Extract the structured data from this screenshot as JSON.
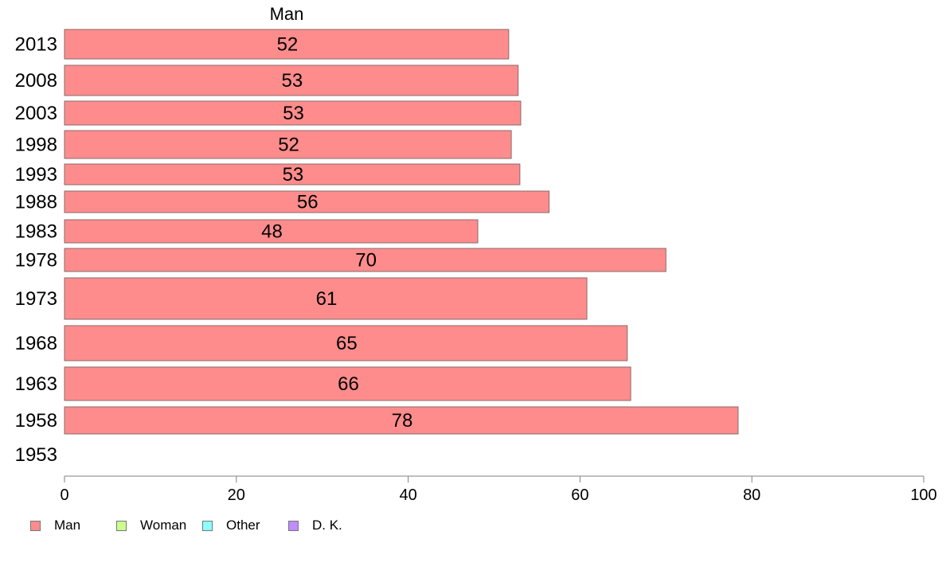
{
  "chart_data": {
    "type": "bar",
    "orientation": "horizontal",
    "panel_header": "Man",
    "categories": [
      "2013",
      "2008",
      "2003",
      "1998",
      "1993",
      "1988",
      "1983",
      "1978",
      "1973",
      "1968",
      "1963",
      "1958",
      "1953"
    ],
    "series": [
      {
        "name": "Man",
        "values": [
          52,
          53,
          53,
          52,
          53,
          56,
          48,
          70,
          61,
          65,
          66,
          78,
          null
        ]
      }
    ],
    "value_labels": [
      "52",
      "53",
      "53",
      "52",
      "53",
      "56",
      "48",
      "70",
      "61",
      "65",
      "66",
      "78",
      ""
    ],
    "bar_value_precise": [
      51.7,
      52.8,
      53.1,
      52.0,
      53.0,
      56.4,
      48.1,
      70.0,
      60.8,
      65.5,
      65.9,
      78.4,
      null
    ],
    "xlim": [
      0,
      100
    ],
    "xticks": [
      "0",
      "20",
      "40",
      "60",
      "80",
      "100"
    ],
    "xlabel": "",
    "ylabel": "",
    "legend": {
      "position": "bottom-left",
      "entries": [
        {
          "label": "Man",
          "color": "#ff8c8c"
        },
        {
          "label": "Woman",
          "color": "#ccff8c"
        },
        {
          "label": "Other",
          "color": "#8cffff"
        },
        {
          "label": "D. K.",
          "color": "#c08cff"
        }
      ]
    },
    "bar_color": "#ff8c8c",
    "bar_edge_color": "#8a6a6a",
    "axis_color": "#808080"
  }
}
